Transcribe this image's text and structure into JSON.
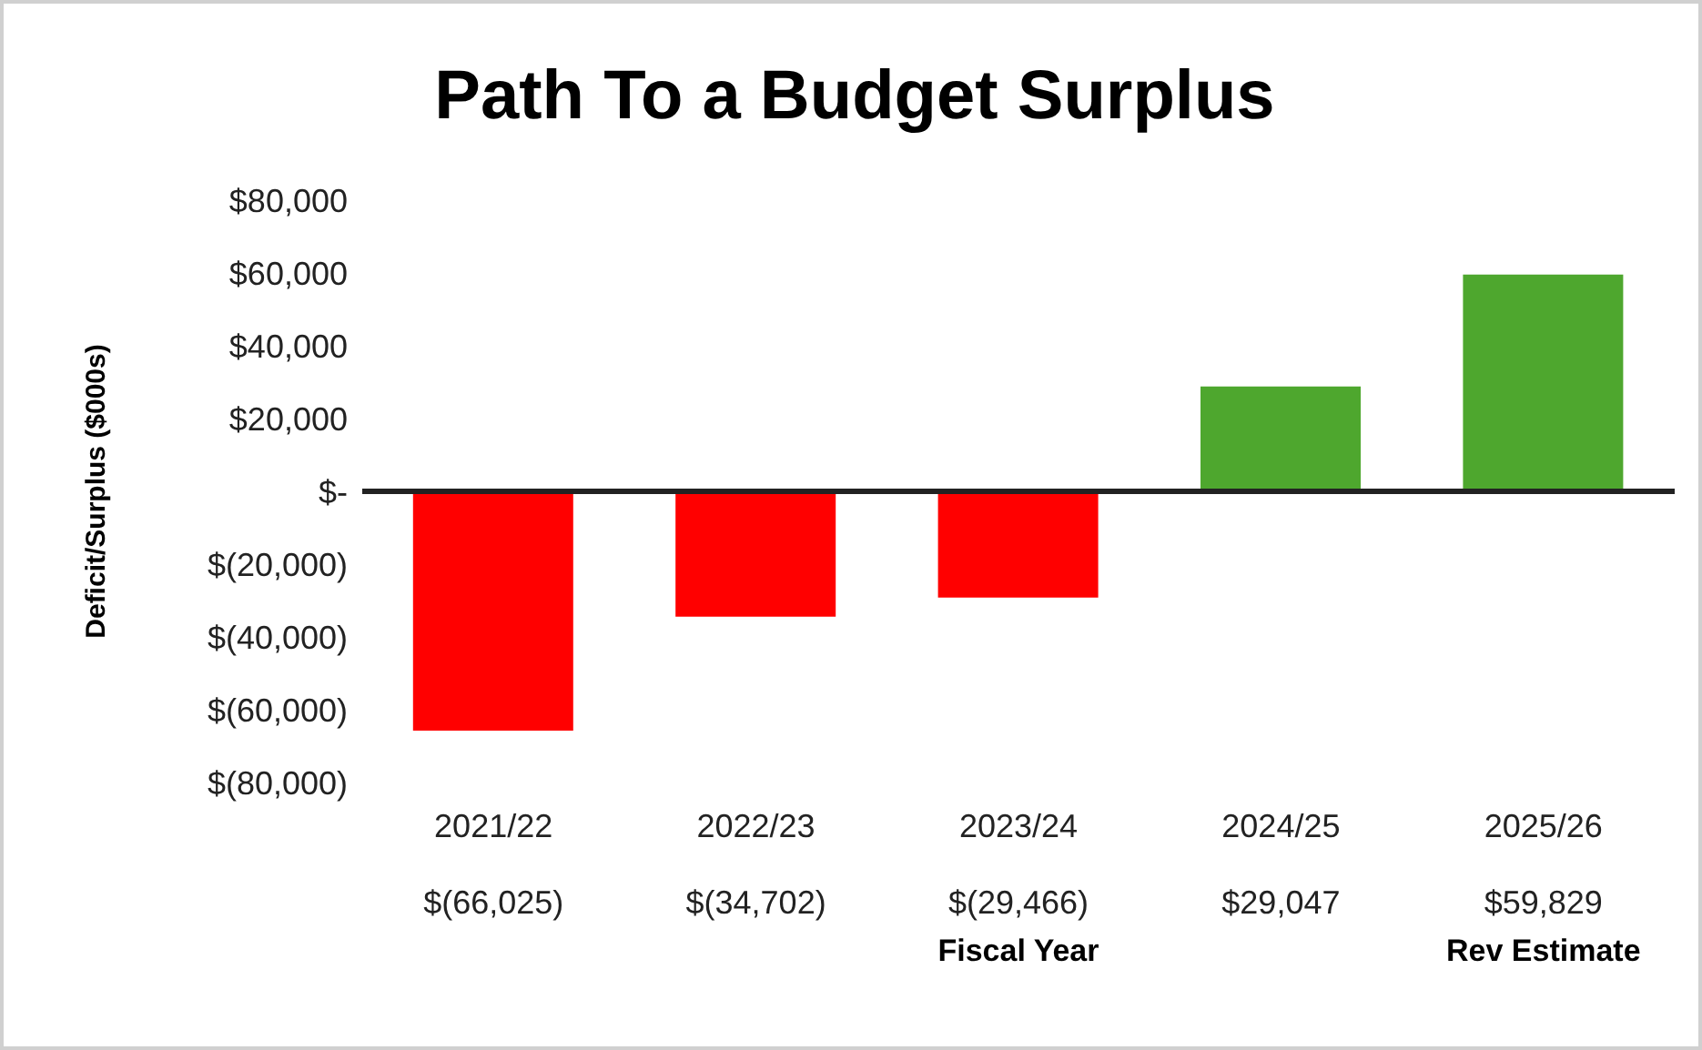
{
  "chart_data": {
    "type": "bar",
    "title": "Path To a Budget Surplus",
    "xlabel": "Fiscal Year",
    "ylabel": "Deficit/Surplus ($000s)",
    "categories": [
      "2021/22",
      "2022/23",
      "2023/24",
      "2024/25",
      "2025/26"
    ],
    "values": [
      -66025,
      -34702,
      -29466,
      29047,
      59829
    ],
    "colors": [
      "#ff0000",
      "#ff0000",
      "#ff0000",
      "#4ea72e",
      "#4ea72e"
    ],
    "value_labels": [
      "$(66,025)",
      "$(34,702)",
      "$(29,466)",
      "$29,047",
      "$59,829"
    ],
    "ylim": [
      -80000,
      80000
    ],
    "yticks": [
      {
        "value": -80000,
        "label": "$(80,000)"
      },
      {
        "value": -60000,
        "label": "$(60,000)"
      },
      {
        "value": -40000,
        "label": "$(40,000)"
      },
      {
        "value": -20000,
        "label": "$(20,000)"
      },
      {
        "value": 0,
        "label": "$-"
      },
      {
        "value": 20000,
        "label": "$20,000"
      },
      {
        "value": 40000,
        "label": "$40,000"
      },
      {
        "value": 60000,
        "label": "$60,000"
      },
      {
        "value": 80000,
        "label": "$80,000"
      }
    ],
    "ref_lines": [
      {
        "axis": "y",
        "value": 0,
        "color": "#222222"
      }
    ],
    "annotations": [
      "Rev Estimate"
    ]
  }
}
